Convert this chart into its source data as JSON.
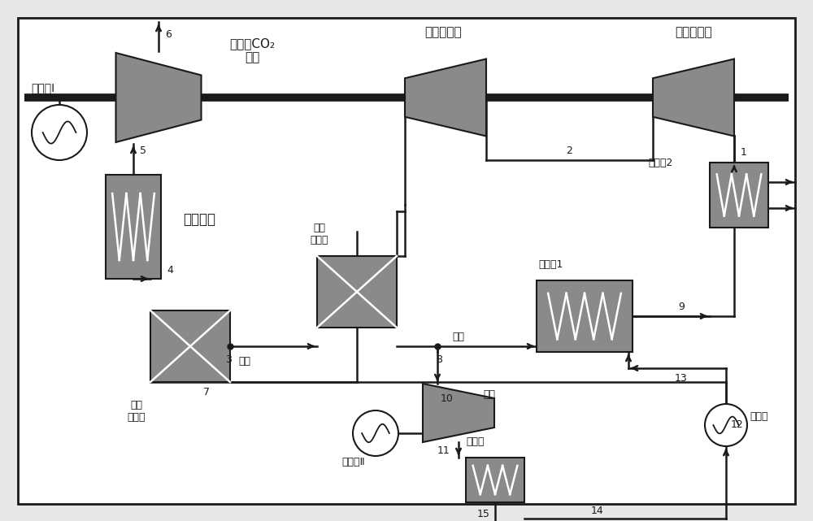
{
  "bg": "#e8e8e8",
  "comp_gray": "#8a8a8a",
  "dark": "#1a1a1a",
  "white": "#ffffff",
  "shaft_lw": 6,
  "pipe_lw": 1.8,
  "labels": {
    "gen1": "发电朼Ⅰ",
    "turb_main": "超临界CO₂\n透平",
    "comp2": "二级压缩朼",
    "comp1": "一级压缩朼",
    "nuclear": "核反应堆",
    "pre2": "预冷器2",
    "pre1": "预冷器1",
    "ltr": "低温\n回热器",
    "htr": "高温\n回热器",
    "split": "分流",
    "merge": "合流",
    "gen2": "发电朼Ⅱ",
    "turb2": "透平",
    "cond": "冷凝器",
    "pump": "增压泵"
  }
}
